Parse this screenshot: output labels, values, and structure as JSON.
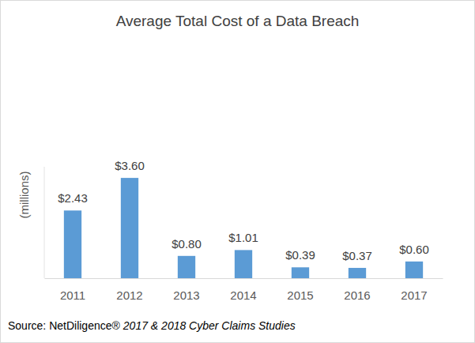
{
  "chart_data": {
    "type": "bar",
    "title": "Average Total Cost of a Data Breach",
    "ylabel": "(millions)",
    "categories": [
      "2011",
      "2012",
      "2013",
      "2014",
      "2015",
      "2016",
      "2017"
    ],
    "values": [
      2.43,
      3.6,
      0.8,
      1.01,
      0.39,
      0.37,
      0.6
    ],
    "value_labels": [
      "$2.43",
      "$3.60",
      "$0.80",
      "$1.01",
      "$0.39",
      "$0.37",
      "$0.60"
    ],
    "data_labels": true,
    "color": "#5b9bd5",
    "ylim": [
      0,
      4
    ],
    "tick_labels": "x",
    "grid": false,
    "annotations": [
      "Source: NetDiligence®",
      "2017 & 2018 Cyber Claims Studies"
    ]
  }
}
